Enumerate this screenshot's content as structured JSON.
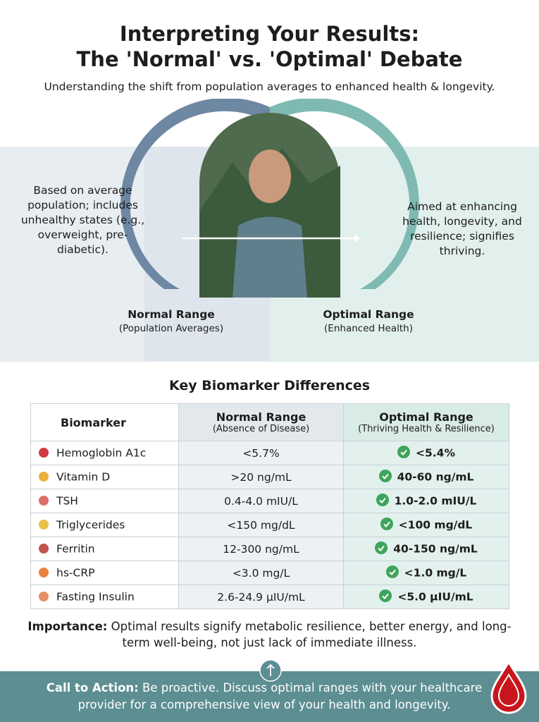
{
  "header": {
    "title_lines": [
      "Interpreting Your Results:",
      "The 'Normal' vs. 'Optimal' Debate"
    ],
    "subtitle": "Understanding the shift from population averages to enhanced health & longevity."
  },
  "comparison": {
    "normal": {
      "label": "Normal Range",
      "sublabel": "(Population Averages)",
      "description": "Based on average population; includes unhealthy states (e.g., overweight, pre-diabetic)."
    },
    "optimal": {
      "label": "Optimal Range",
      "sublabel": "(Enhanced Health)",
      "description": "Aimed at enhancing health, longevity, and resilience; signifies thriving."
    }
  },
  "table": {
    "title": "Key Biomarker Differences",
    "columns": [
      {
        "label": "Biomarker"
      },
      {
        "label": "Normal Range",
        "sublabel": "(Absence of Disease)"
      },
      {
        "label": "Optimal Range",
        "sublabel": "(Thriving Health & Resilience)"
      }
    ],
    "rows": [
      [
        "Hemoglobin A1c",
        "<5.7%",
        "<5.4%"
      ],
      [
        "Vitamin D",
        ">20 ng/mL",
        "40-60 ng/mL"
      ],
      [
        "TSH",
        "0.4-4.0 mIU/L",
        "1.0-2.0 mIU/L"
      ],
      [
        "Triglycerides",
        "<150 mg/dL",
        "<100 mg/dL"
      ],
      [
        "Ferritin",
        "12-300 ng/mL",
        "40-150 ng/mL"
      ],
      [
        "hs-CRP",
        "<3.0 mg/L",
        "<1.0 mg/L"
      ],
      [
        "Fasting Insulin",
        "2.6-24.9 µIU/mL",
        "<5.0 µIU/mL"
      ]
    ]
  },
  "importance": {
    "label": "Importance:",
    "text": "Optimal results signify metabolic resilience, better energy, and long-term well-being, not just lack of immediate illness."
  },
  "call_to_action": {
    "label": "Call to Action:",
    "text": "Be proactive. Discuss optimal ranges with your healthcare provider for a comprehensive view of your health and longevity."
  }
}
